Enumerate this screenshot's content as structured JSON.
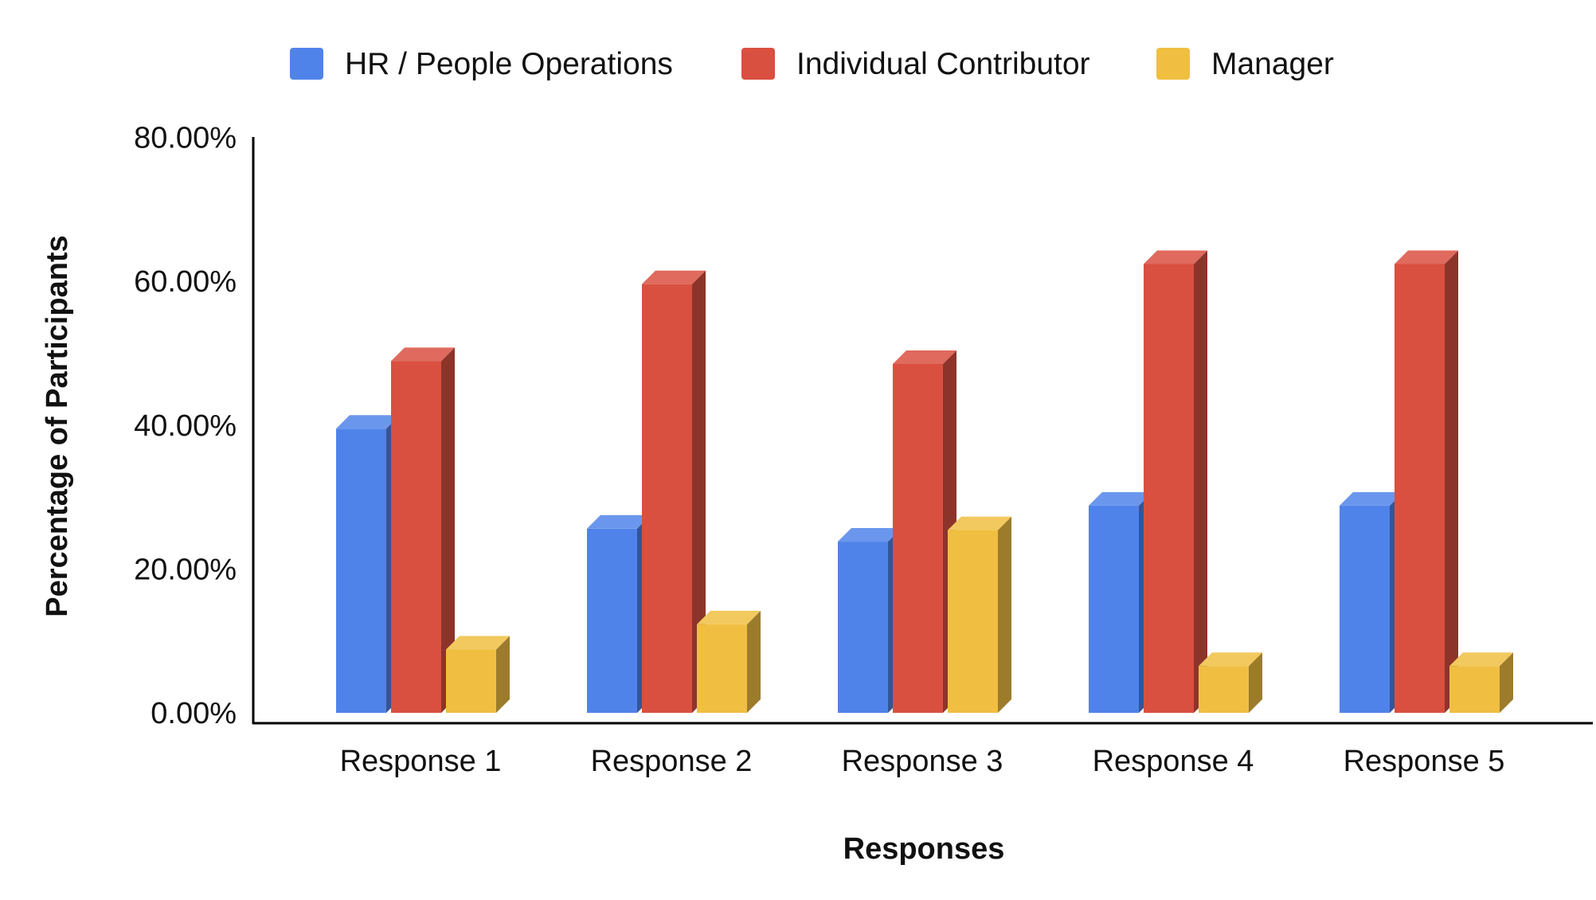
{
  "chart_data": {
    "type": "bar",
    "title": "",
    "xlabel": "Responses",
    "ylabel": "Percentage of Participants",
    "ylim": [
      0,
      80
    ],
    "yticks": [
      "0.00%",
      "20.00%",
      "40.00%",
      "60.00%",
      "80.00%"
    ],
    "ytick_values": [
      0,
      20,
      40,
      60,
      80
    ],
    "categories": [
      "Response 1",
      "Response 2",
      "Response 3",
      "Response 4",
      "Response 5"
    ],
    "legend_position": "top",
    "style": "3d",
    "series": [
      {
        "name": "HR / People Operations",
        "color": "#5083EA",
        "values": [
          39.5,
          25.6,
          23.8,
          28.8,
          28.8
        ]
      },
      {
        "name": "Individual Contributor",
        "color": "#D95040",
        "values": [
          48.9,
          59.6,
          48.5,
          62.4,
          62.4
        ]
      },
      {
        "name": "Manager",
        "color": "#F0BF42",
        "values": [
          8.8,
          12.3,
          25.4,
          6.5,
          6.5
        ]
      }
    ]
  }
}
